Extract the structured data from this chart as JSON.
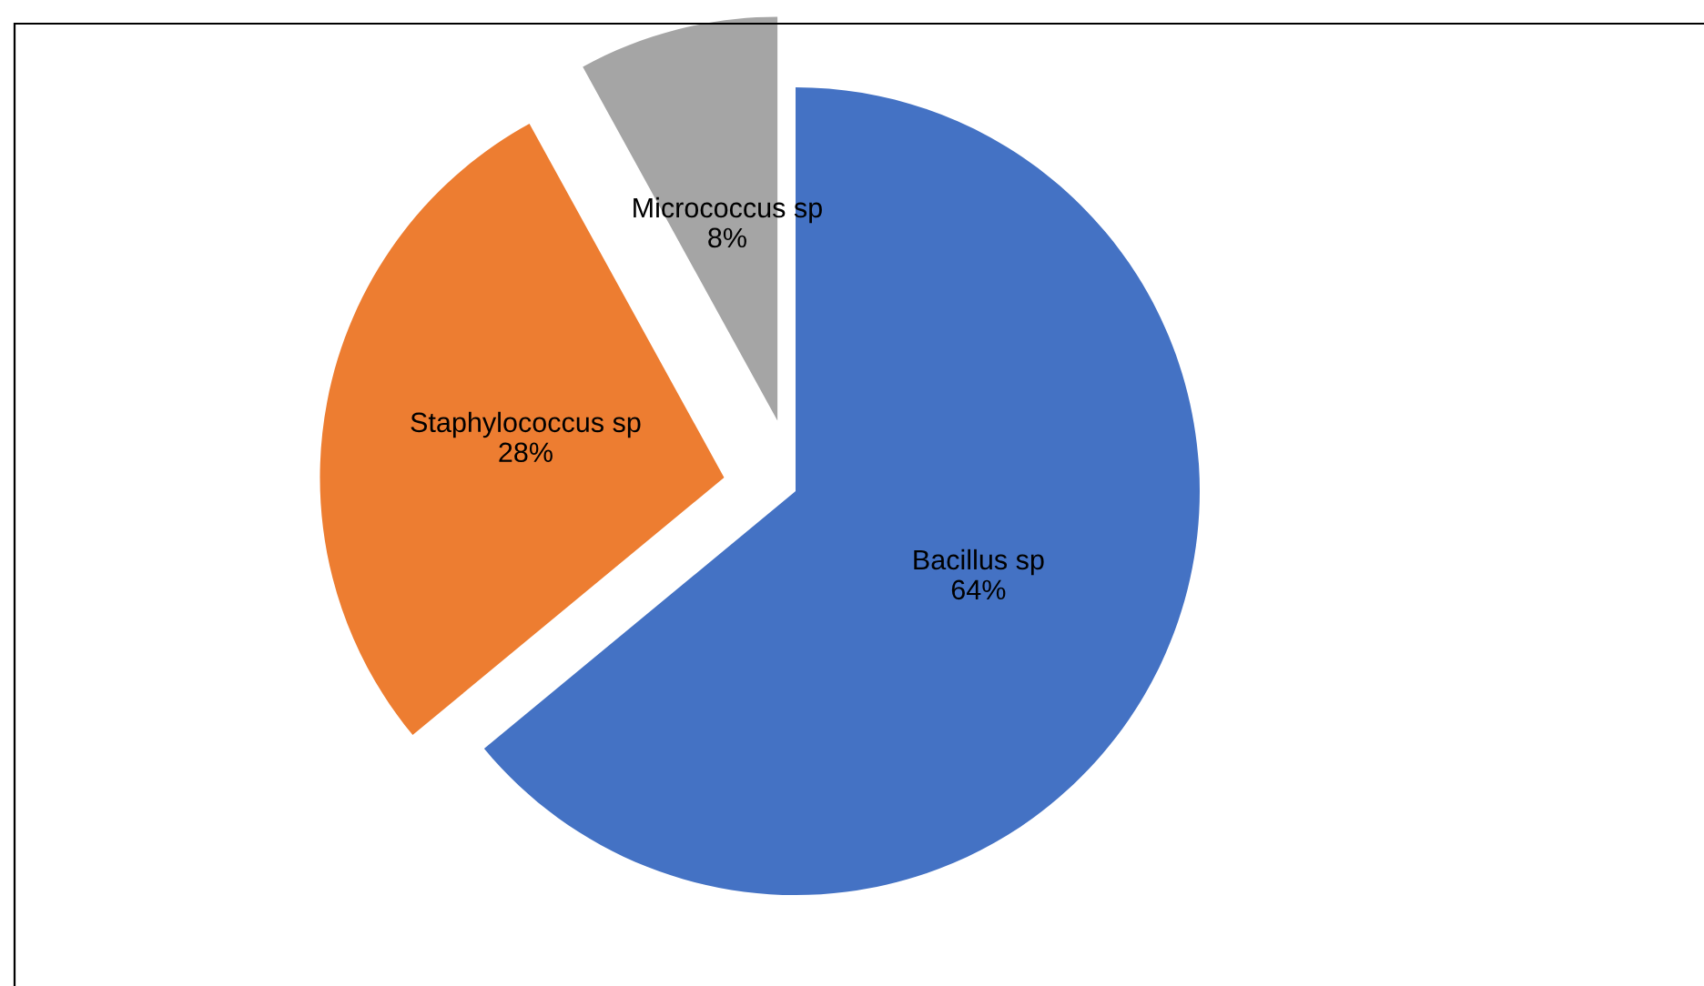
{
  "chart_data": {
    "type": "pie",
    "categories": [
      "Bacillus sp",
      "Staphylococcus sp",
      "Micrococcus sp"
    ],
    "values": [
      64,
      28,
      8
    ],
    "value_labels": [
      "64%",
      "28%",
      "8%"
    ],
    "colors": [
      "#4472c4",
      "#ed7d31",
      "#a5a5a5"
    ]
  }
}
